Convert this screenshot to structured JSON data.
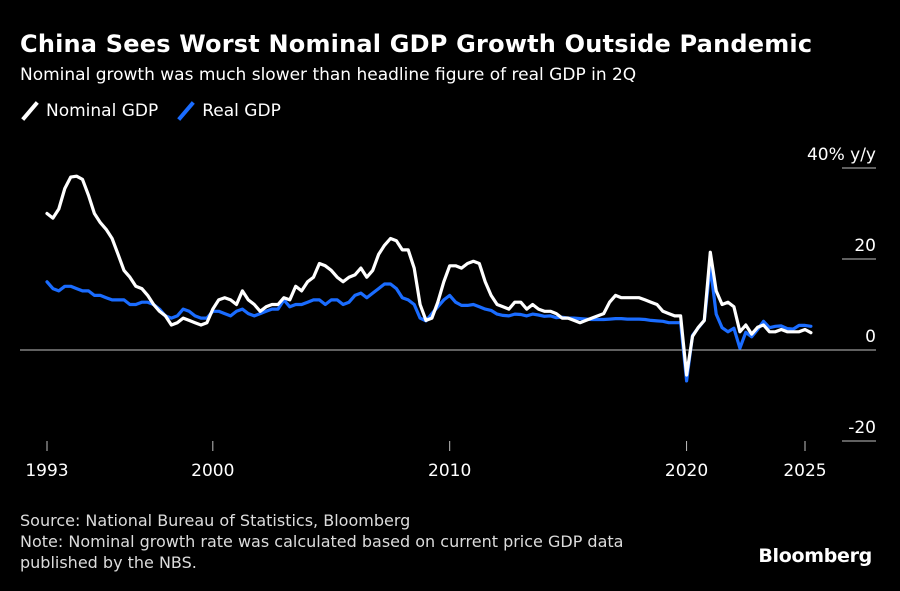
{
  "header": {
    "title": "China Sees Worst Nominal GDP Growth Outside Pandemic",
    "subtitle": "Nominal growth was much slower than headline figure of real GDP in 2Q"
  },
  "legend": {
    "nominal_label": "Nominal GDP",
    "real_label": "Real GDP"
  },
  "footer": {
    "source": "Source: National Bureau of Statistics, Bloomberg",
    "note_line1": "Note: Nominal growth rate was calculated based on current price GDP data",
    "note_line2": "published by the NBS."
  },
  "brand": "Bloomberg",
  "colors": {
    "background": "#000000",
    "nominal": "#ffffff",
    "real": "#1a6cff",
    "axis": "#bfbfbf"
  },
  "chart_data": {
    "type": "line",
    "ylabel": "y/y",
    "y_unit": "%",
    "ylim": [
      -20,
      40
    ],
    "y_ticks": [
      {
        "value": 40,
        "label": "40% y/y"
      },
      {
        "value": 20,
        "label": "20"
      },
      {
        "value": 0,
        "label": "0"
      },
      {
        "value": -20,
        "label": "-20"
      }
    ],
    "x_ticks": [
      {
        "value": 1993,
        "label": "1993"
      },
      {
        "value": 2000,
        "label": "2000"
      },
      {
        "value": 2010,
        "label": "2010"
      },
      {
        "value": 2020,
        "label": "2020"
      },
      {
        "value": 2025,
        "label": "2025"
      }
    ],
    "xlim": [
      1993,
      2025.5
    ],
    "grid": false,
    "legend_position": "top-left",
    "series": [
      {
        "name": "Nominal GDP",
        "color": "#ffffff",
        "points": [
          [
            1993.0,
            30.0
          ],
          [
            1993.25,
            29.0
          ],
          [
            1993.5,
            31.0
          ],
          [
            1993.75,
            35.5
          ],
          [
            1994.0,
            38.0
          ],
          [
            1994.25,
            38.2
          ],
          [
            1994.5,
            37.5
          ],
          [
            1994.75,
            34.0
          ],
          [
            1995.0,
            30.0
          ],
          [
            1995.25,
            28.0
          ],
          [
            1995.5,
            26.5
          ],
          [
            1995.75,
            24.5
          ],
          [
            1996.0,
            21.0
          ],
          [
            1996.25,
            17.5
          ],
          [
            1996.5,
            16.0
          ],
          [
            1996.75,
            14.0
          ],
          [
            1997.0,
            13.5
          ],
          [
            1997.25,
            12.0
          ],
          [
            1997.5,
            10.0
          ],
          [
            1997.75,
            8.5
          ],
          [
            1998.0,
            7.5
          ],
          [
            1998.25,
            5.5
          ],
          [
            1998.5,
            6.0
          ],
          [
            1998.75,
            7.0
          ],
          [
            1999.0,
            6.5
          ],
          [
            1999.25,
            6.0
          ],
          [
            1999.5,
            5.5
          ],
          [
            1999.75,
            6.0
          ],
          [
            2000.0,
            9.0
          ],
          [
            2000.25,
            11.0
          ],
          [
            2000.5,
            11.5
          ],
          [
            2000.75,
            11.0
          ],
          [
            2001.0,
            10.0
          ],
          [
            2001.25,
            13.0
          ],
          [
            2001.5,
            11.0
          ],
          [
            2001.75,
            10.0
          ],
          [
            2002.0,
            8.5
          ],
          [
            2002.25,
            9.5
          ],
          [
            2002.5,
            10.0
          ],
          [
            2002.75,
            10.0
          ],
          [
            2003.0,
            11.5
          ],
          [
            2003.25,
            11.0
          ],
          [
            2003.5,
            14.0
          ],
          [
            2003.75,
            13.0
          ],
          [
            2004.0,
            15.0
          ],
          [
            2004.25,
            16.0
          ],
          [
            2004.5,
            19.0
          ],
          [
            2004.75,
            18.5
          ],
          [
            2005.0,
            17.5
          ],
          [
            2005.25,
            16.0
          ],
          [
            2005.5,
            15.0
          ],
          [
            2005.75,
            16.0
          ],
          [
            2006.0,
            16.5
          ],
          [
            2006.25,
            18.0
          ],
          [
            2006.5,
            16.0
          ],
          [
            2006.75,
            17.5
          ],
          [
            2007.0,
            21.0
          ],
          [
            2007.25,
            23.0
          ],
          [
            2007.5,
            24.5
          ],
          [
            2007.75,
            24.0
          ],
          [
            2008.0,
            22.0
          ],
          [
            2008.25,
            22.0
          ],
          [
            2008.5,
            18.0
          ],
          [
            2008.75,
            10.0
          ],
          [
            2009.0,
            6.5
          ],
          [
            2009.25,
            7.0
          ],
          [
            2009.5,
            10.5
          ],
          [
            2009.75,
            15.0
          ],
          [
            2010.0,
            18.5
          ],
          [
            2010.25,
            18.5
          ],
          [
            2010.5,
            18.0
          ],
          [
            2010.75,
            19.0
          ],
          [
            2011.0,
            19.5
          ],
          [
            2011.25,
            19.0
          ],
          [
            2011.5,
            15.0
          ],
          [
            2011.75,
            12.0
          ],
          [
            2012.0,
            10.0
          ],
          [
            2012.25,
            9.5
          ],
          [
            2012.5,
            9.0
          ],
          [
            2012.75,
            10.5
          ],
          [
            2013.0,
            10.5
          ],
          [
            2013.25,
            9.0
          ],
          [
            2013.5,
            10.0
          ],
          [
            2013.75,
            9.0
          ],
          [
            2014.0,
            8.5
          ],
          [
            2014.25,
            8.5
          ],
          [
            2014.5,
            8.0
          ],
          [
            2014.75,
            7.0
          ],
          [
            2015.0,
            7.0
          ],
          [
            2015.25,
            6.5
          ],
          [
            2015.5,
            6.0
          ],
          [
            2015.75,
            6.5
          ],
          [
            2016.0,
            7.0
          ],
          [
            2016.25,
            7.5
          ],
          [
            2016.5,
            8.0
          ],
          [
            2016.75,
            10.5
          ],
          [
            2017.0,
            12.0
          ],
          [
            2017.25,
            11.5
          ],
          [
            2017.5,
            11.5
          ],
          [
            2017.75,
            11.5
          ],
          [
            2018.0,
            11.5
          ],
          [
            2018.25,
            11.0
          ],
          [
            2018.5,
            10.5
          ],
          [
            2018.75,
            10.0
          ],
          [
            2019.0,
            8.5
          ],
          [
            2019.25,
            8.0
          ],
          [
            2019.5,
            7.5
          ],
          [
            2019.75,
            7.5
          ],
          [
            2020.0,
            -5.5
          ],
          [
            2020.25,
            3.0
          ],
          [
            2020.5,
            5.0
          ],
          [
            2020.75,
            6.5
          ],
          [
            2021.0,
            21.5
          ],
          [
            2021.25,
            13.0
          ],
          [
            2021.5,
            10.0
          ],
          [
            2021.75,
            10.5
          ],
          [
            2022.0,
            9.5
          ],
          [
            2022.25,
            4.0
          ],
          [
            2022.5,
            5.5
          ],
          [
            2022.75,
            3.5
          ],
          [
            2023.0,
            5.0
          ],
          [
            2023.25,
            5.5
          ],
          [
            2023.5,
            4.0
          ],
          [
            2023.75,
            4.0
          ],
          [
            2024.0,
            4.5
          ],
          [
            2024.25,
            4.0
          ],
          [
            2024.5,
            4.0
          ],
          [
            2024.75,
            4.0
          ],
          [
            2025.0,
            4.5
          ],
          [
            2025.25,
            3.8
          ]
        ]
      },
      {
        "name": "Real GDP",
        "color": "#1a6cff",
        "points": [
          [
            1993.0,
            15.0
          ],
          [
            1993.25,
            13.5
          ],
          [
            1993.5,
            13.0
          ],
          [
            1993.75,
            14.0
          ],
          [
            1994.0,
            14.0
          ],
          [
            1994.25,
            13.5
          ],
          [
            1994.5,
            13.0
          ],
          [
            1994.75,
            13.0
          ],
          [
            1995.0,
            12.0
          ],
          [
            1995.25,
            12.0
          ],
          [
            1995.5,
            11.5
          ],
          [
            1995.75,
            11.0
          ],
          [
            1996.0,
            11.0
          ],
          [
            1996.25,
            11.0
          ],
          [
            1996.5,
            10.0
          ],
          [
            1996.75,
            10.0
          ],
          [
            1997.0,
            10.5
          ],
          [
            1997.25,
            10.5
          ],
          [
            1997.5,
            10.0
          ],
          [
            1997.75,
            9.0
          ],
          [
            1998.0,
            7.5
          ],
          [
            1998.25,
            7.0
          ],
          [
            1998.5,
            7.5
          ],
          [
            1998.75,
            9.0
          ],
          [
            1999.0,
            8.5
          ],
          [
            1999.25,
            7.5
          ],
          [
            1999.5,
            7.0
          ],
          [
            1999.75,
            7.0
          ],
          [
            2000.0,
            8.5
          ],
          [
            2000.25,
            8.5
          ],
          [
            2000.5,
            8.0
          ],
          [
            2000.75,
            7.5
          ],
          [
            2001.0,
            8.5
          ],
          [
            2001.25,
            9.0
          ],
          [
            2001.5,
            8.0
          ],
          [
            2001.75,
            7.5
          ],
          [
            2002.0,
            8.0
          ],
          [
            2002.25,
            8.5
          ],
          [
            2002.5,
            9.0
          ],
          [
            2002.75,
            9.0
          ],
          [
            2003.0,
            11.0
          ],
          [
            2003.25,
            9.5
          ],
          [
            2003.5,
            10.0
          ],
          [
            2003.75,
            10.0
          ],
          [
            2004.0,
            10.5
          ],
          [
            2004.25,
            11.0
          ],
          [
            2004.5,
            11.0
          ],
          [
            2004.75,
            10.0
          ],
          [
            2005.0,
            11.0
          ],
          [
            2005.25,
            11.0
          ],
          [
            2005.5,
            10.0
          ],
          [
            2005.75,
            10.5
          ],
          [
            2006.0,
            12.0
          ],
          [
            2006.25,
            12.5
          ],
          [
            2006.5,
            11.5
          ],
          [
            2006.75,
            12.5
          ],
          [
            2007.0,
            13.5
          ],
          [
            2007.25,
            14.5
          ],
          [
            2007.5,
            14.5
          ],
          [
            2007.75,
            13.5
          ],
          [
            2008.0,
            11.5
          ],
          [
            2008.25,
            11.0
          ],
          [
            2008.5,
            10.0
          ],
          [
            2008.75,
            7.0
          ],
          [
            2009.0,
            6.4
          ],
          [
            2009.25,
            8.0
          ],
          [
            2009.5,
            9.5
          ],
          [
            2009.75,
            11.0
          ],
          [
            2010.0,
            12.0
          ],
          [
            2010.25,
            10.5
          ],
          [
            2010.5,
            9.8
          ],
          [
            2010.75,
            9.8
          ],
          [
            2011.0,
            10.0
          ],
          [
            2011.25,
            9.5
          ],
          [
            2011.5,
            9.0
          ],
          [
            2011.75,
            8.7
          ],
          [
            2012.0,
            7.9
          ],
          [
            2012.25,
            7.6
          ],
          [
            2012.5,
            7.5
          ],
          [
            2012.75,
            7.9
          ],
          [
            2013.0,
            7.8
          ],
          [
            2013.25,
            7.5
          ],
          [
            2013.5,
            7.9
          ],
          [
            2013.75,
            7.7
          ],
          [
            2014.0,
            7.4
          ],
          [
            2014.25,
            7.5
          ],
          [
            2014.5,
            7.1
          ],
          [
            2014.75,
            7.2
          ],
          [
            2015.0,
            7.0
          ],
          [
            2015.25,
            7.0
          ],
          [
            2015.5,
            6.9
          ],
          [
            2015.75,
            6.8
          ],
          [
            2016.0,
            6.7
          ],
          [
            2016.25,
            6.7
          ],
          [
            2016.5,
            6.7
          ],
          [
            2016.75,
            6.8
          ],
          [
            2017.0,
            6.9
          ],
          [
            2017.25,
            6.9
          ],
          [
            2017.5,
            6.8
          ],
          [
            2017.75,
            6.8
          ],
          [
            2018.0,
            6.8
          ],
          [
            2018.25,
            6.7
          ],
          [
            2018.5,
            6.5
          ],
          [
            2018.75,
            6.4
          ],
          [
            2019.0,
            6.3
          ],
          [
            2019.25,
            6.0
          ],
          [
            2019.5,
            6.0
          ],
          [
            2019.75,
            6.0
          ],
          [
            2020.0,
            -6.8
          ],
          [
            2020.25,
            3.2
          ],
          [
            2020.5,
            4.9
          ],
          [
            2020.75,
            6.5
          ],
          [
            2021.0,
            18.3
          ],
          [
            2021.25,
            7.9
          ],
          [
            2021.5,
            4.9
          ],
          [
            2021.75,
            4.0
          ],
          [
            2022.0,
            4.8
          ],
          [
            2022.25,
            0.4
          ],
          [
            2022.5,
            3.9
          ],
          [
            2022.75,
            2.9
          ],
          [
            2023.0,
            4.5
          ],
          [
            2023.25,
            6.3
          ],
          [
            2023.5,
            4.9
          ],
          [
            2023.75,
            5.2
          ],
          [
            2024.0,
            5.3
          ],
          [
            2024.25,
            4.7
          ],
          [
            2024.5,
            4.6
          ],
          [
            2024.75,
            5.4
          ],
          [
            2025.0,
            5.4
          ],
          [
            2025.25,
            5.2
          ]
        ]
      }
    ]
  }
}
